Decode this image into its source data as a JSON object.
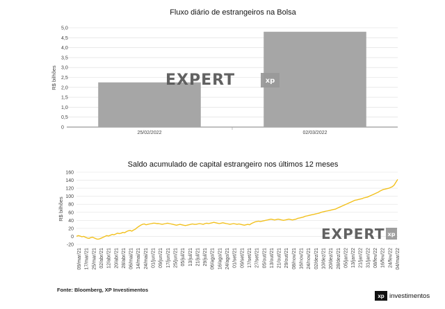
{
  "source": "Fonte: Bloomberg, XP Investimentos",
  "logo": {
    "mark": "xp",
    "text": "investimentos"
  },
  "watermark": {
    "text_main": "EXPERT",
    "text_box": "xp"
  },
  "chart_data": [
    {
      "type": "bar",
      "title": "Fluxo diário de estrangeiros na Bolsa",
      "ylabel": "R$ bilhões",
      "categories": [
        "25/02/2022",
        "02/03/2022"
      ],
      "values": [
        2.25,
        4.8
      ],
      "ylim": [
        0,
        5.0
      ],
      "yticks": [
        0,
        0.5,
        1.0,
        1.5,
        2.0,
        2.5,
        3.0,
        3.5,
        4.0,
        4.5,
        5.0
      ],
      "ytick_labels": [
        "0",
        "0,5",
        "1,0",
        "1,5",
        "2,0",
        "2,5",
        "3,0",
        "3,5",
        "4,0",
        "4,5",
        "5,0"
      ],
      "grid": true,
      "bar_color": "#a6a6a6"
    },
    {
      "type": "line",
      "title": "Saldo acumulado de capital estrangeiro nos últimos 12 meses",
      "ylabel": "R$ bilhões",
      "ylim": [
        -20,
        160
      ],
      "yticks": [
        -20,
        0,
        20,
        40,
        60,
        80,
        100,
        120,
        140,
        160
      ],
      "ytick_labels": [
        "-20",
        "0",
        "20",
        "40",
        "60",
        "80",
        "100",
        "120",
        "140",
        "160"
      ],
      "grid": true,
      "line_color": "#f2c01c",
      "x_tick_labels": [
        "09/mar/21",
        "17/mar/21",
        "25/mar/21",
        "02/abr/21",
        "12/abr/21",
        "20/abr/21",
        "28/abr/21",
        "06/mai/21",
        "14/mai/21",
        "24/mai/21",
        "01/jun/21",
        "09/jun/21",
        "17/jun/21",
        "25/jun/21",
        "05/jul/21",
        "13/jul/21",
        "21/jul/21",
        "29/jul/21",
        "06/ago/21",
        "16/ago/21",
        "24/ago/21",
        "01/set/21",
        "09/set/21",
        "17/set/21",
        "27/set/21",
        "05/out/21",
        "13/out/21",
        "21/out/21",
        "29/out/21",
        "08/nov/21",
        "16/nov/21",
        "24/nov/21",
        "02/dez/21",
        "10/dez/21",
        "20/dez/21",
        "28/dez/21",
        "05/jan/22",
        "13/jan/22",
        "21/jan/22",
        "31/jan/22",
        "08/fev/22",
        "16/fev/22",
        "24/fev/22",
        "04/mar/22"
      ],
      "series": [
        {
          "values": [
            0,
            2,
            1,
            -1,
            0,
            -2,
            -4,
            -5,
            -3,
            -2,
            -4,
            -6,
            -7,
            -6,
            -4,
            -2,
            0,
            2,
            1,
            3,
            5,
            4,
            6,
            8,
            7,
            8,
            10,
            9,
            12,
            14,
            15,
            13,
            16,
            18,
            22,
            25,
            28,
            30,
            31,
            29,
            30,
            31,
            32,
            33,
            33,
            32,
            32,
            31,
            30,
            31,
            32,
            33,
            32,
            31,
            30,
            29,
            28,
            29,
            30,
            29,
            28,
            27,
            28,
            29,
            30,
            31,
            30,
            30,
            31,
            32,
            31,
            30,
            32,
            33,
            32,
            33,
            34,
            35,
            34,
            33,
            32,
            33,
            34,
            33,
            32,
            31,
            30,
            31,
            32,
            31,
            30,
            31,
            30,
            29,
            28,
            29,
            30,
            29,
            32,
            34,
            36,
            37,
            38,
            37,
            38,
            39,
            40,
            41,
            42,
            43,
            42,
            41,
            42,
            43,
            42,
            41,
            40,
            41,
            42,
            43,
            42,
            41,
            42,
            43,
            45,
            46,
            47,
            48,
            50,
            51,
            52,
            53,
            54,
            55,
            56,
            57,
            58,
            60,
            61,
            62,
            63,
            64,
            65,
            66,
            67,
            68,
            70,
            72,
            74,
            76,
            78,
            80,
            82,
            84,
            86,
            88,
            90,
            91,
            92,
            93,
            94,
            96,
            97,
            98,
            100,
            102,
            104,
            106,
            108,
            110,
            113,
            115,
            117,
            118,
            119,
            120,
            122,
            124,
            128,
            135,
            142
          ]
        }
      ]
    }
  ]
}
